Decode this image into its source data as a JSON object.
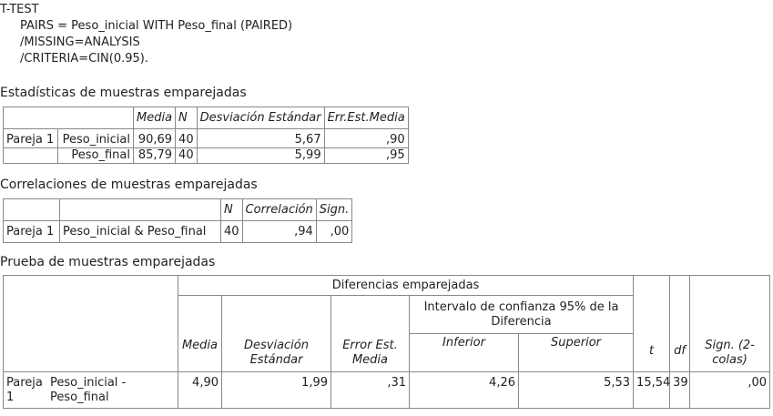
{
  "syntax": {
    "line1": "T-TEST",
    "line2": "PAIRS = Peso_inicial WITH Peso_final (PAIRED)",
    "line3": "/MISSING=ANALYSIS",
    "line4": "/CRITERIA=CIN(0.95)."
  },
  "stats": {
    "caption": "Estadísticas de muestras emparejadas",
    "headers": [
      "Media",
      "N",
      "Desviación Estándar",
      "Err.Est.Media"
    ],
    "pair_label": "Pareja 1",
    "rows": [
      {
        "var": "Peso_inicial",
        "media": "90,69",
        "n": "40",
        "desv": "5,67",
        "err": ",90"
      },
      {
        "var": "Peso_final",
        "media": "85,79",
        "n": "40",
        "desv": "5,99",
        "err": ",95"
      }
    ]
  },
  "corr": {
    "caption": "Correlaciones de muestras emparejadas",
    "headers": [
      "N",
      "Correlación",
      "Sign."
    ],
    "pair_label": "Pareja 1",
    "var": "Peso_inicial & Peso_final",
    "n": "40",
    "r": ",94",
    "sig": ",00"
  },
  "test": {
    "caption": "Prueba de muestras emparejadas",
    "group_header": "Diferencias emparejadas",
    "ci_header": "Intervalo de confianza 95% de la Diferencia",
    "headers": {
      "media": "Media",
      "desv": "Desviación Estándar",
      "err": "Error Est. Media",
      "inf": "Inferior",
      "sup": "Superior",
      "t": "t",
      "df": "df",
      "sig": "Sign. (2-colas)"
    },
    "pair_label": "Pareja 1",
    "var": "Peso_inicial - Peso_final",
    "media": "4,90",
    "desv": "1,99",
    "err": ",31",
    "inf": "4,26",
    "sup": "5,53",
    "t": "15,54",
    "df": "39",
    "sig": ",00"
  }
}
